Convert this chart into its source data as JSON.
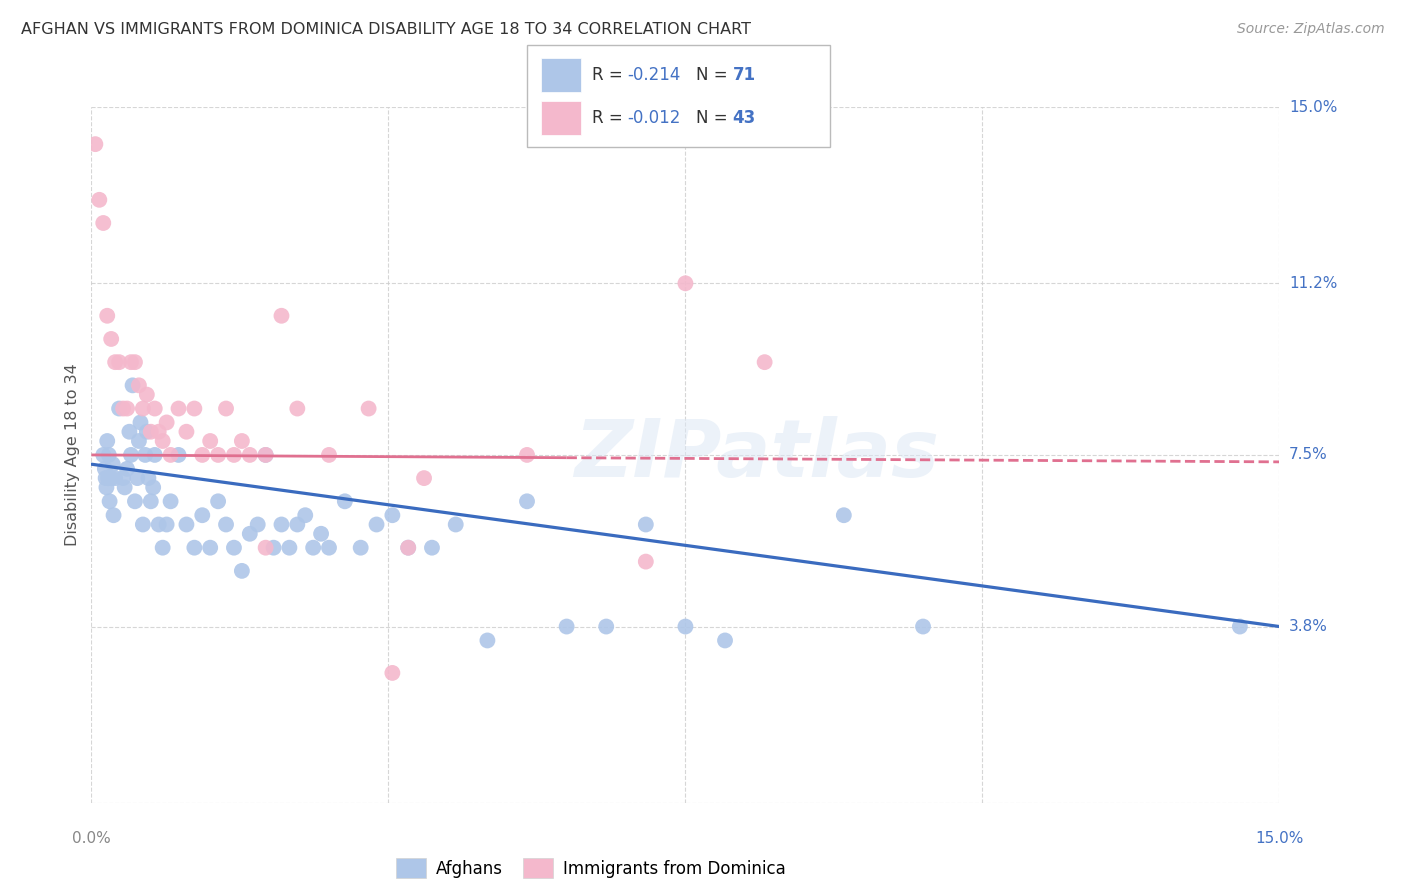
{
  "title": "AFGHAN VS IMMIGRANTS FROM DOMINICA DISABILITY AGE 18 TO 34 CORRELATION CHART",
  "source": "Source: ZipAtlas.com",
  "ylabel": "Disability Age 18 to 34",
  "xlim": [
    0.0,
    15.0
  ],
  "ylim": [
    0.0,
    15.0
  ],
  "ytick_values": [
    0.0,
    3.8,
    7.5,
    11.2,
    15.0
  ],
  "ytick_labels": [
    "",
    "3.8%",
    "7.5%",
    "11.2%",
    "15.0%"
  ],
  "xtick_values": [
    0.0,
    3.75,
    7.5,
    11.25,
    15.0
  ],
  "grid_color": "#cccccc",
  "background_color": "#ffffff",
  "afghans_color": "#aec6e8",
  "dominica_color": "#f4b8cc",
  "afghans_line_color": "#3a6bbf",
  "dominica_line_color": "#e07090",
  "legend_r_afghans": "-0.214",
  "legend_n_afghans": "71",
  "legend_r_dominica": "-0.012",
  "legend_n_dominica": "43",
  "watermark": "ZIPatlas",
  "blue_line_x0": 0.0,
  "blue_line_y0": 7.3,
  "blue_line_x1": 15.0,
  "blue_line_y1": 3.8,
  "pink_line_x0": 0.0,
  "pink_line_y0": 7.5,
  "pink_line_x1": 15.0,
  "pink_line_y1": 7.35,
  "afghans_x": [
    0.15,
    0.17,
    0.18,
    0.19,
    0.2,
    0.21,
    0.22,
    0.23,
    0.25,
    0.27,
    0.28,
    0.3,
    0.35,
    0.4,
    0.42,
    0.45,
    0.48,
    0.5,
    0.52,
    0.55,
    0.58,
    0.6,
    0.62,
    0.65,
    0.68,
    0.7,
    0.72,
    0.75,
    0.78,
    0.8,
    0.85,
    0.9,
    0.95,
    1.0,
    1.1,
    1.2,
    1.3,
    1.4,
    1.5,
    1.6,
    1.7,
    1.8,
    1.9,
    2.0,
    2.1,
    2.2,
    2.3,
    2.4,
    2.5,
    2.6,
    2.7,
    2.8,
    2.9,
    3.0,
    3.2,
    3.4,
    3.6,
    3.8,
    4.0,
    4.3,
    4.6,
    5.0,
    5.5,
    6.0,
    6.5,
    7.0,
    7.5,
    8.0,
    9.5,
    10.5,
    14.5
  ],
  "afghans_y": [
    7.5,
    7.2,
    7.0,
    6.8,
    7.8,
    7.0,
    7.5,
    6.5,
    7.0,
    7.3,
    6.2,
    7.0,
    8.5,
    7.0,
    6.8,
    7.2,
    8.0,
    7.5,
    9.0,
    6.5,
    7.0,
    7.8,
    8.2,
    6.0,
    7.5,
    8.0,
    7.0,
    6.5,
    6.8,
    7.5,
    6.0,
    5.5,
    6.0,
    6.5,
    7.5,
    6.0,
    5.5,
    6.2,
    5.5,
    6.5,
    6.0,
    5.5,
    5.0,
    5.8,
    6.0,
    7.5,
    5.5,
    6.0,
    5.5,
    6.0,
    6.2,
    5.5,
    5.8,
    5.5,
    6.5,
    5.5,
    6.0,
    6.2,
    5.5,
    5.5,
    6.0,
    3.5,
    6.5,
    3.8,
    3.8,
    6.0,
    3.8,
    3.5,
    6.2,
    3.8,
    3.8
  ],
  "dominica_x": [
    0.05,
    0.1,
    0.15,
    0.2,
    0.25,
    0.3,
    0.35,
    0.4,
    0.45,
    0.5,
    0.55,
    0.6,
    0.65,
    0.7,
    0.75,
    0.8,
    0.85,
    0.9,
    0.95,
    1.0,
    1.1,
    1.2,
    1.3,
    1.4,
    1.5,
    1.6,
    1.7,
    1.8,
    1.9,
    2.0,
    2.2,
    2.4,
    2.6,
    3.0,
    3.5,
    4.0,
    4.2,
    5.5,
    7.0,
    7.5,
    8.5,
    2.2,
    3.8
  ],
  "dominica_y": [
    14.2,
    13.0,
    12.5,
    10.5,
    10.0,
    9.5,
    9.5,
    8.5,
    8.5,
    9.5,
    9.5,
    9.0,
    8.5,
    8.8,
    8.0,
    8.5,
    8.0,
    7.8,
    8.2,
    7.5,
    8.5,
    8.0,
    8.5,
    7.5,
    7.8,
    7.5,
    8.5,
    7.5,
    7.8,
    7.5,
    7.5,
    10.5,
    8.5,
    7.5,
    8.5,
    5.5,
    7.0,
    7.5,
    5.2,
    11.2,
    9.5,
    5.5,
    2.8
  ]
}
